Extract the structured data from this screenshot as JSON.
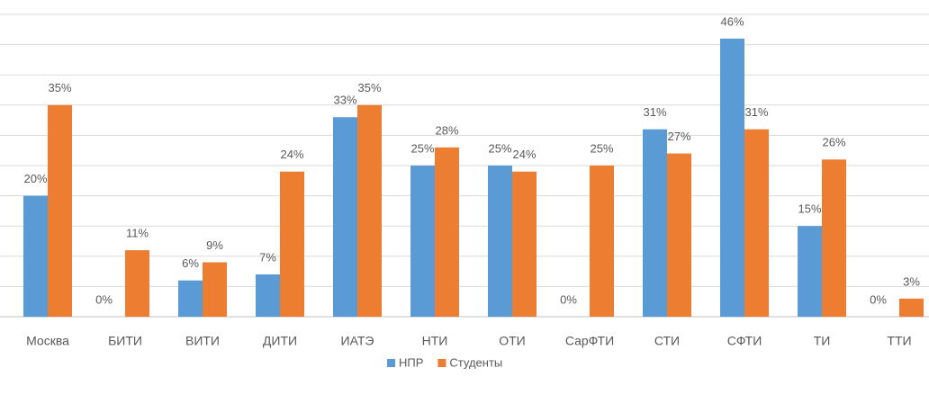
{
  "chart_data": {
    "type": "bar",
    "categories": [
      "Москва",
      "БИТИ",
      "ВИТИ",
      "ДИТИ",
      "ИАТЭ",
      "НТИ",
      "ОТИ",
      "СарФТИ",
      "СТИ",
      "СФТИ",
      "ТИ",
      "ТТИ"
    ],
    "series": [
      {
        "name": "НПР",
        "color": "#5b9bd5",
        "values": [
          20,
          0,
          6,
          7,
          33,
          25,
          25,
          0,
          31,
          46,
          15,
          0
        ],
        "value_labels": [
          "20%",
          "0%",
          "6%",
          "7%",
          "33%",
          "25%",
          "25%",
          "0%",
          "31%",
          "46%",
          "15%",
          "0%"
        ]
      },
      {
        "name": "Студенты",
        "color": "#ed7d31",
        "values": [
          35,
          11,
          9,
          24,
          35,
          28,
          24,
          25,
          27,
          31,
          26,
          3
        ],
        "value_labels": [
          "35%",
          "11%",
          "9%",
          "24%",
          "35%",
          "28%",
          "24%",
          "25%",
          "27%",
          "31%",
          "26%",
          "3%"
        ]
      }
    ],
    "ylim": [
      0,
      50
    ],
    "yticks": [
      0,
      5,
      10,
      15,
      20,
      25,
      30,
      35,
      40,
      45,
      50
    ],
    "grid": true,
    "legend": "bottom"
  }
}
